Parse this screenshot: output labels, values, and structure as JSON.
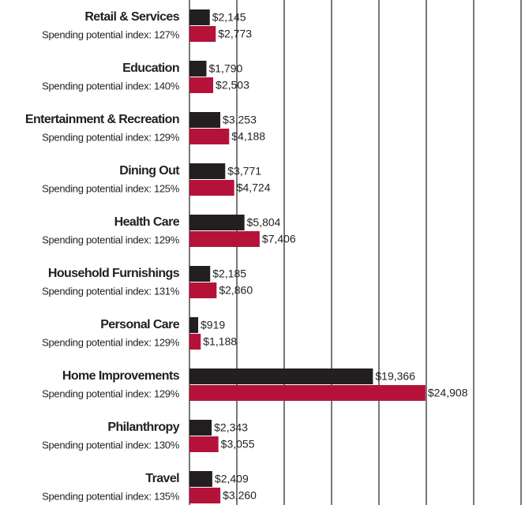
{
  "chart_data": {
    "type": "hbar",
    "categories": [
      "Retail & Services",
      "Education",
      "Entertainment & Recreation",
      "Dining Out",
      "Health Care",
      "Household Furnishings",
      "Personal Care",
      "Home Improvements",
      "Philanthropy",
      "Travel"
    ],
    "sublabels": [
      "Spending potential index: 127%",
      "Spending potential index: 140%",
      "Spending potential index: 129%",
      "Spending potential index: 125%",
      "Spending potential index: 129%",
      "Spending potential index: 131%",
      "Spending potential index: 129%",
      "Spending potential index: 129%",
      "Spending potential index: 130%",
      "Spending potential index: 135%"
    ],
    "series": [
      {
        "color": "#231f20",
        "values": [
          2145,
          1790,
          3253,
          3771,
          5804,
          2185,
          919,
          19366,
          2343,
          2409
        ],
        "value_labels": [
          "$2,145",
          "$1,790",
          "$3,253",
          "$3,771",
          "$5,804",
          "$2,185",
          "$919",
          "$19,366",
          "$2,343",
          "$2,409"
        ]
      },
      {
        "color": "#b5123a",
        "values": [
          2773,
          2503,
          4188,
          4724,
          7406,
          2860,
          1188,
          24908,
          3055,
          3260
        ],
        "value_labels": [
          "$2,773",
          "$2,503",
          "$4,188",
          "$4,724",
          "$7,406",
          "$2,860",
          "$1,188",
          "$24,908",
          "$3,055",
          "$3,260"
        ]
      }
    ],
    "xlim": [
      0,
      35000
    ],
    "xticks": [
      0,
      5000,
      10000,
      15000,
      20000,
      25000,
      30000,
      35000
    ],
    "grid": true
  }
}
